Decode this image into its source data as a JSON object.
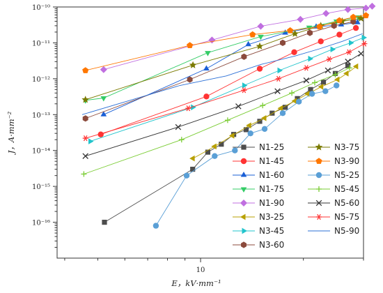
{
  "chart_data": {
    "type": "scatter",
    "title": "",
    "xlabel": "E，kV·mm⁻¹",
    "ylabel": "J，A·mm⁻²",
    "xscale": "log",
    "yscale": "log",
    "xlim": [
      3.8,
      30
    ],
    "ylim": [
      1e-17,
      1e-10
    ],
    "x_ticks": [
      {
        "value": 10,
        "label": "10"
      }
    ],
    "y_ticks": [
      {
        "value": 1e-10,
        "label": "10⁻¹⁰"
      },
      {
        "value": 1e-11,
        "label": "10⁻¹¹"
      },
      {
        "value": 1e-12,
        "label": "10⁻¹²"
      },
      {
        "value": 1e-13,
        "label": "10⁻¹³"
      },
      {
        "value": 1e-14,
        "label": "10⁻¹⁴"
      },
      {
        "value": 1e-15,
        "label": "10⁻¹⁵"
      },
      {
        "value": 1e-16,
        "label": "10⁻¹⁶"
      }
    ],
    "grid": false,
    "legend_position": "bottom-right",
    "series": [
      {
        "name": "N1-25",
        "color": "#4d4d4d",
        "marker": "square",
        "points": [
          [
            5.23,
            1e-16
          ],
          [
            9.48,
            3e-15
          ],
          [
            10.5,
            9e-15
          ],
          [
            11.5,
            1.5e-14
          ],
          [
            12.5,
            2.8e-14
          ],
          [
            13.6,
            3.8e-14
          ],
          [
            14.9,
            6.5e-14
          ],
          [
            16.2,
            1.1e-13
          ],
          [
            17.7,
            1.6e-13
          ],
          [
            19.2,
            2.8e-13
          ],
          [
            21.0,
            5e-13
          ],
          [
            22.9,
            8e-13
          ],
          [
            24.8,
            1.4e-12
          ],
          [
            27.0,
            2.3e-12
          ]
        ]
      },
      {
        "name": "N1-45",
        "color": "#ff3333",
        "marker": "circle",
        "points": [
          [
            5.1,
            2.8e-14
          ],
          [
            10.4,
            3.2e-13
          ],
          [
            14.9,
            1.9e-12
          ],
          [
            18.8,
            5.5e-12
          ],
          [
            22.5,
            1.1e-11
          ],
          [
            25.5,
            1.7e-11
          ],
          [
            28.5,
            2.6e-11
          ]
        ]
      },
      {
        "name": "N1-60",
        "color": "#1a5fd6",
        "marker": "triangle-up",
        "points": [
          [
            5.2,
            1e-13
          ],
          [
            10.4,
            1.9e-12
          ],
          [
            13.8,
            9e-12
          ],
          [
            17.7,
            1.9e-11
          ],
          [
            21.8,
            2.8e-11
          ],
          [
            25.8,
            3.2e-11
          ],
          [
            28.8,
            3.7e-11
          ]
        ]
      },
      {
        "name": "N1-75",
        "color": "#33cc66",
        "marker": "triangle-down",
        "points": [
          [
            4.6,
            2.5e-13
          ],
          [
            5.2,
            2.9e-13
          ],
          [
            10.5,
            5.3e-12
          ],
          [
            15.0,
            1.5e-11
          ],
          [
            20.8,
            2.7e-11
          ],
          [
            25.0,
            4e-11
          ],
          [
            29.0,
            5.2e-11
          ]
        ]
      },
      {
        "name": "N1-90",
        "color": "#c06fe0",
        "marker": "diamond",
        "points": [
          [
            5.2,
            1.8e-12
          ],
          [
            10.8,
            1.2e-11
          ],
          [
            15.0,
            2.9e-11
          ],
          [
            19.6,
            4.5e-11
          ],
          [
            23.3,
            6.6e-11
          ],
          [
            27.0,
            8.5e-11
          ],
          [
            30.5,
            9.3e-11
          ],
          [
            31.8,
            1.05e-10
          ]
        ]
      },
      {
        "name": "N3-25",
        "color": "#b8a000",
        "marker": "triangle-left",
        "points": [
          [
            9.5,
            6e-15
          ],
          [
            11.0,
            1.3e-14
          ],
          [
            12.4,
            2.6e-14
          ],
          [
            13.9,
            5e-14
          ],
          [
            15.4,
            8e-14
          ],
          [
            17.2,
            1.5e-13
          ],
          [
            18.9,
            2.4e-13
          ],
          [
            20.6,
            3.8e-13
          ],
          [
            22.6,
            6e-13
          ],
          [
            25.2,
            9.5e-13
          ],
          [
            26.8,
            1.4e-12
          ],
          [
            28.6,
            2.2e-12
          ]
        ]
      },
      {
        "name": "N3-45",
        "color": "#22c4cc",
        "marker": "triangle-right",
        "points": [
          [
            4.75,
            1.8e-14
          ],
          [
            9.48,
            1.6e-13
          ],
          [
            13.4,
            6.5e-13
          ],
          [
            17.0,
            1.7e-12
          ],
          [
            20.9,
            3.6e-12
          ],
          [
            24.3,
            6.6e-12
          ],
          [
            27.5,
            1e-11
          ],
          [
            30.0,
            1.4e-11
          ]
        ]
      },
      {
        "name": "N3-60",
        "color": "#8b4a3c",
        "marker": "hexagon",
        "points": [
          [
            4.6,
            7.8e-14
          ],
          [
            9.3,
            9.5e-13
          ],
          [
            13.4,
            4.1e-12
          ],
          [
            17.4,
            1e-11
          ],
          [
            20.9,
            1.9e-11
          ],
          [
            24.6,
            3e-11
          ],
          [
            28.0,
            3.9e-11
          ]
        ]
      },
      {
        "name": "N3-75",
        "color": "#7a7a00",
        "marker": "star",
        "points": [
          [
            4.6,
            2.6e-13
          ],
          [
            9.5,
            2.4e-12
          ],
          [
            14.9,
            8e-12
          ],
          [
            18.9,
            1.8e-11
          ],
          [
            22.5,
            3e-11
          ],
          [
            26.0,
            4e-11
          ],
          [
            29.5,
            4.8e-11
          ]
        ]
      },
      {
        "name": "N3-90",
        "color": "#ff7700",
        "marker": "pentagon",
        "points": [
          [
            4.6,
            1.7e-12
          ],
          [
            9.3,
            8.5e-12
          ],
          [
            14.2,
            1.7e-11
          ],
          [
            18.3,
            2.2e-11
          ],
          [
            22.3,
            2.8e-11
          ],
          [
            25.5,
            4.2e-11
          ],
          [
            28.0,
            5.2e-11
          ],
          [
            30.5,
            5.8e-11
          ]
        ]
      },
      {
        "name": "N5-25",
        "color": "#5a9fd6",
        "marker": "circle",
        "points": [
          [
            7.4,
            8e-17
          ],
          [
            9.1,
            2e-15
          ],
          [
            11.0,
            7e-15
          ],
          [
            12.6,
            1e-14
          ],
          [
            14.0,
            3e-14
          ],
          [
            15.4,
            4e-14
          ],
          [
            17.4,
            1.1e-13
          ],
          [
            19.4,
            2.3e-13
          ],
          [
            21.2,
            3.8e-13
          ],
          [
            23.2,
            4.5e-13
          ],
          [
            25.0,
            6.5e-13
          ]
        ]
      },
      {
        "name": "N5-45",
        "color": "#7acc33",
        "marker": "plus",
        "points": [
          [
            4.55,
            2.2e-15
          ],
          [
            8.8,
            2e-14
          ],
          [
            12.0,
            7e-14
          ],
          [
            15.2,
            1.8e-13
          ],
          [
            18.5,
            4e-13
          ],
          [
            21.6,
            7.8e-13
          ],
          [
            24.8,
            1.3e-12
          ],
          [
            27.3,
            2e-12
          ]
        ]
      },
      {
        "name": "N5-60",
        "color": "#333333",
        "marker": "x",
        "points": [
          [
            4.6,
            7e-15
          ],
          [
            8.6,
            4.5e-14
          ],
          [
            12.9,
            1.7e-13
          ],
          [
            16.8,
            4.5e-13
          ],
          [
            20.4,
            9e-13
          ],
          [
            23.6,
            1.7e-12
          ],
          [
            27.0,
            3e-12
          ],
          [
            29.5,
            5e-12
          ]
        ]
      },
      {
        "name": "N5-75",
        "color": "#ff3333",
        "marker": "asterisk",
        "points": [
          [
            4.6,
            2.2e-14
          ],
          [
            9.2,
            1.5e-13
          ],
          [
            13.4,
            4.8e-13
          ],
          [
            16.9,
            1e-12
          ],
          [
            20.4,
            2e-12
          ],
          [
            23.8,
            3.5e-12
          ],
          [
            27.2,
            5.5e-12
          ],
          [
            30.2,
            9.5e-12
          ]
        ]
      },
      {
        "name": "N5-90",
        "color": "#2b6fd6",
        "marker": "none",
        "points": [
          [
            4.5,
            1e-13
          ],
          [
            8.7,
            6.5e-13
          ],
          [
            11.9,
            1.2e-12
          ],
          [
            15.0,
            2.5e-12
          ],
          [
            18.9,
            4.3e-12
          ],
          [
            22.3,
            6.8e-12
          ],
          [
            26.0,
            1.1e-11
          ],
          [
            29.8,
            1.8e-11
          ]
        ]
      }
    ]
  }
}
